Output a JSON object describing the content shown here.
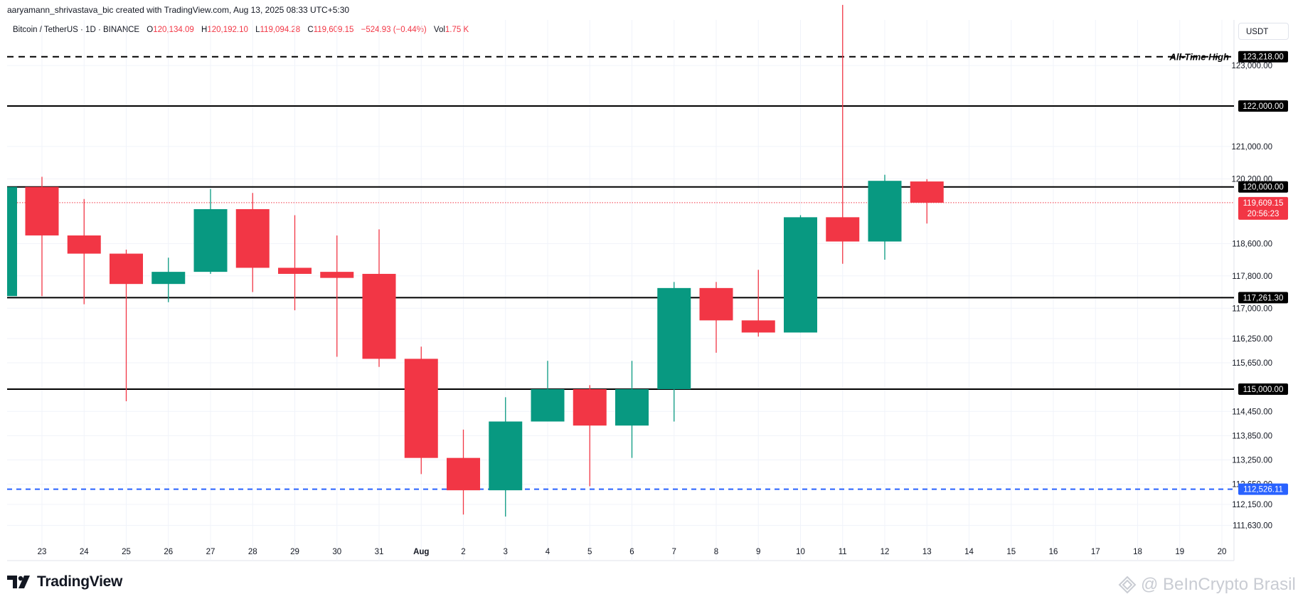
{
  "header": {
    "credit": "aaryamann_shrivastava_bic created with TradingView.com, Aug 13, 2025 08:33 UTC+5:30",
    "symbol": "Bitcoin / TetherUS · 1D · BINANCE",
    "o_label": "O",
    "o_value": "120,134.09",
    "h_label": "H",
    "h_value": "120,192.10",
    "l_label": "L",
    "l_value": "119,094.28",
    "c_label": "C",
    "c_value": "119,609.15",
    "change": "−524.93 (−0.44%)",
    "vol_label": "Vol",
    "vol_value": "1.75 K",
    "currency_button": "USDT"
  },
  "branding": {
    "logo_icon": "tradingview-logo-icon",
    "name": "TradingView",
    "watermark": "@ BeInCrypto Brasil",
    "watermark_icon": "beincrypto-logo-icon"
  },
  "colors": {
    "up": "#089981",
    "down": "#f23645",
    "grid": "#f0f3fa",
    "level_line": "#000000",
    "support_line": "#2962ff",
    "last_price": "#f23645",
    "axis_text": "#131722"
  },
  "chart_data": {
    "type": "candlestick",
    "x_ticks": [
      "23",
      "24",
      "25",
      "26",
      "27",
      "28",
      "29",
      "30",
      "31",
      "Aug",
      "2",
      "3",
      "4",
      "5",
      "6",
      "7",
      "8",
      "9",
      "10",
      "11",
      "12",
      "13",
      "14",
      "15",
      "16",
      "17",
      "18",
      "19",
      "20"
    ],
    "y_ticks": [
      "123,000.00",
      "121,000.00",
      "120,200.00",
      "118,600.00",
      "117,800.00",
      "117,000.00",
      "116,250.00",
      "115,650.00",
      "114,450.00",
      "113,850.00",
      "113,250.00",
      "112,650.00",
      "112,150.00",
      "111,630.00"
    ],
    "partial_first_candle": {
      "open": 117300,
      "close": 120000
    },
    "candles": [
      {
        "date": "23",
        "open": 120000,
        "high": 120250,
        "low": 117300,
        "close": 118800
      },
      {
        "date": "24",
        "open": 118800,
        "high": 119700,
        "low": 117100,
        "close": 118350
      },
      {
        "date": "25",
        "open": 118350,
        "high": 118450,
        "low": 114700,
        "close": 117600
      },
      {
        "date": "26",
        "open": 117600,
        "high": 118250,
        "low": 117150,
        "close": 117900
      },
      {
        "date": "27",
        "open": 117900,
        "high": 119950,
        "low": 117850,
        "close": 119450
      },
      {
        "date": "28",
        "open": 119450,
        "high": 119850,
        "low": 117400,
        "close": 118000
      },
      {
        "date": "29",
        "open": 118000,
        "high": 119300,
        "low": 116950,
        "close": 117850
      },
      {
        "date": "30",
        "open": 117900,
        "high": 118800,
        "low": 115800,
        "close": 117750
      },
      {
        "date": "31",
        "open": 117850,
        "high": 118950,
        "low": 115550,
        "close": 115750
      },
      {
        "date": "Aug",
        "open": 115750,
        "high": 116050,
        "low": 112900,
        "close": 113300
      },
      {
        "date": "2",
        "open": 113300,
        "high": 114000,
        "low": 111900,
        "close": 112500
      },
      {
        "date": "3",
        "open": 112500,
        "high": 114800,
        "low": 111850,
        "close": 114200
      },
      {
        "date": "4",
        "open": 114200,
        "high": 115700,
        "low": 114200,
        "close": 115000
      },
      {
        "date": "5",
        "open": 115000,
        "high": 115100,
        "low": 112600,
        "close": 114100
      },
      {
        "date": "6",
        "open": 114100,
        "high": 115700,
        "low": 113300,
        "close": 115000
      },
      {
        "date": "7",
        "open": 115000,
        "high": 117650,
        "low": 114200,
        "close": 117500
      },
      {
        "date": "8",
        "open": 117500,
        "high": 117650,
        "low": 115900,
        "close": 116700
      },
      {
        "date": "9",
        "open": 116700,
        "high": 117950,
        "low": 116300,
        "close": 116400
      },
      {
        "date": "10",
        "open": 116400,
        "high": 119300,
        "low": 116400,
        "close": 119250
      },
      {
        "date": "11",
        "open": 119250,
        "high": 124500,
        "low": 118100,
        "close": 118650
      },
      {
        "date": "12",
        "open": 118650,
        "high": 120300,
        "low": 118200,
        "close": 120150
      },
      {
        "date": "13",
        "open": 120134.09,
        "high": 120192.1,
        "low": 119094.28,
        "close": 119609.15
      }
    ],
    "levels": [
      {
        "value": 123218,
        "label": "123,218.00",
        "style": "dashed",
        "color": "#000000",
        "annotation": "All-Time High"
      },
      {
        "value": 122000,
        "label": "122,000.00",
        "style": "solid",
        "color": "#000000"
      },
      {
        "value": 120000,
        "label": "120,000.00",
        "style": "solid",
        "color": "#000000"
      },
      {
        "value": 117261.3,
        "label": "117,261.30",
        "style": "solid",
        "color": "#000000"
      },
      {
        "value": 115000,
        "label": "115,000.00",
        "style": "solid",
        "color": "#000000"
      },
      {
        "value": 112526.11,
        "label": "112,526.11",
        "style": "dashed",
        "color": "#2962ff"
      }
    ],
    "last_price": {
      "value": 119609.15,
      "label": "119,609.15",
      "countdown": "20:56:23"
    }
  }
}
